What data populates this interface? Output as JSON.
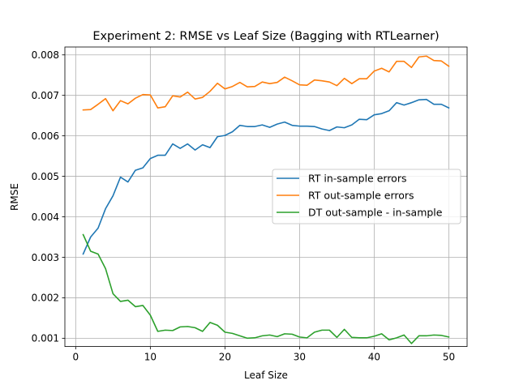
{
  "chart_data": {
    "type": "line",
    "title": "Experiment 2: RMSE vs Leaf Size (Bagging with RTLearner)",
    "xlabel": "Leaf Size",
    "ylabel": "RMSE",
    "xlim": [
      -1.45,
      52.45
    ],
    "ylim": [
      0.000795,
      0.008195
    ],
    "xticks": [
      0,
      10,
      20,
      30,
      40,
      50
    ],
    "xtick_labels": [
      "0",
      "10",
      "20",
      "30",
      "40",
      "50"
    ],
    "yticks": [
      0.001,
      0.002,
      0.003,
      0.004,
      0.005,
      0.006,
      0.007,
      0.008
    ],
    "ytick_labels": [
      "0.001",
      "0.002",
      "0.003",
      "0.004",
      "0.005",
      "0.006",
      "0.007",
      "0.008"
    ],
    "grid": true,
    "legend_position": "center-right",
    "x": [
      1,
      2,
      3,
      4,
      5,
      6,
      7,
      8,
      9,
      10,
      11,
      12,
      13,
      14,
      15,
      16,
      17,
      18,
      19,
      20,
      21,
      22,
      23,
      24,
      25,
      26,
      27,
      28,
      29,
      30,
      31,
      32,
      33,
      34,
      35,
      36,
      37,
      38,
      39,
      40,
      41,
      42,
      43,
      44,
      45,
      46,
      47,
      48,
      49,
      50
    ],
    "series": [
      {
        "name": "RT in-sample errors",
        "color": "#1f77b4",
        "values": [
          0.00308,
          0.0035,
          0.00372,
          0.0042,
          0.00452,
          0.00498,
          0.00486,
          0.00515,
          0.00521,
          0.00544,
          0.00552,
          0.00552,
          0.0058,
          0.00569,
          0.0058,
          0.00565,
          0.00578,
          0.00571,
          0.00598,
          0.00601,
          0.0061,
          0.00626,
          0.00623,
          0.00623,
          0.00627,
          0.00621,
          0.00629,
          0.00634,
          0.00626,
          0.00624,
          0.00624,
          0.00623,
          0.00617,
          0.00613,
          0.00622,
          0.0062,
          0.00627,
          0.00641,
          0.0064,
          0.00652,
          0.00655,
          0.00662,
          0.00682,
          0.00676,
          0.00682,
          0.00689,
          0.0069,
          0.00678,
          0.00678,
          0.00669
        ]
      },
      {
        "name": "RT out-sample errors",
        "color": "#ff7f0e",
        "values": [
          0.00664,
          0.00665,
          0.00678,
          0.00692,
          0.00662,
          0.00687,
          0.00679,
          0.00693,
          0.00702,
          0.00701,
          0.00669,
          0.00672,
          0.00699,
          0.00696,
          0.00708,
          0.00691,
          0.00695,
          0.0071,
          0.0073,
          0.00716,
          0.00722,
          0.00732,
          0.00721,
          0.00722,
          0.00733,
          0.00729,
          0.00732,
          0.00745,
          0.00736,
          0.00726,
          0.00725,
          0.00738,
          0.00736,
          0.00733,
          0.00724,
          0.00742,
          0.00729,
          0.00741,
          0.00741,
          0.0076,
          0.00767,
          0.00758,
          0.00784,
          0.00784,
          0.00769,
          0.00795,
          0.00797,
          0.00786,
          0.00785,
          0.00772
        ]
      },
      {
        "name": "DT out-sample - in-sample",
        "color": "#2ca02c",
        "values": [
          0.00356,
          0.00315,
          0.00308,
          0.00272,
          0.0021,
          0.00191,
          0.00194,
          0.00178,
          0.00181,
          0.00157,
          0.00117,
          0.0012,
          0.00119,
          0.00128,
          0.00129,
          0.00126,
          0.00117,
          0.00139,
          0.00132,
          0.00115,
          0.00112,
          0.00106,
          0.001,
          0.00101,
          0.00106,
          0.00108,
          0.00104,
          0.00111,
          0.0011,
          0.00103,
          0.00101,
          0.00115,
          0.0012,
          0.0012,
          0.00102,
          0.00122,
          0.00102,
          0.00101,
          0.00101,
          0.00105,
          0.00111,
          0.00096,
          0.00101,
          0.00108,
          0.00087,
          0.00106,
          0.00106,
          0.00108,
          0.00107,
          0.00103
        ]
      }
    ]
  }
}
